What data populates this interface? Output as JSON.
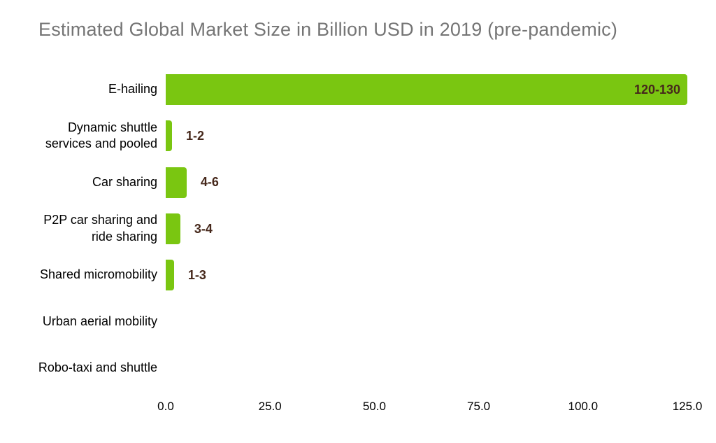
{
  "title": "Estimated Global Market Size in Billion USD in 2019 (pre-pandemic)",
  "colors": {
    "bar": "#7AC611",
    "value_label": "#46281B",
    "title": "#757575",
    "category_label": "#000000",
    "tick_label": "#000000",
    "background": "#FFFFFF"
  },
  "chart_data": {
    "type": "bar",
    "orientation": "horizontal",
    "title": "Estimated Global Market Size in Billion USD in 2019 (pre-pandemic)",
    "categories": [
      "E-hailing",
      "Dynamic shuttle services and pooled",
      "Car sharing",
      "P2P car sharing and ride sharing",
      "Shared micromobility",
      "Urban aerial mobility",
      "Robo-taxi and shuttle"
    ],
    "value_labels": [
      "120-130",
      "1-2",
      "4-6",
      "3-4",
      "1-3",
      "",
      ""
    ],
    "values": [
      125,
      1.5,
      5,
      3.5,
      2,
      0,
      0
    ],
    "xlabel": "",
    "ylabel": "",
    "xlim": [
      0,
      125
    ],
    "x_ticks": [
      "0.0",
      "25.0",
      "50.0",
      "75.0",
      "100.0",
      "125.0"
    ],
    "x_tick_values": [
      0,
      25,
      50,
      75,
      100,
      125
    ],
    "grid": false,
    "legend": false,
    "data_label_position": "inside_for_long_bars_outside_otherwise"
  }
}
